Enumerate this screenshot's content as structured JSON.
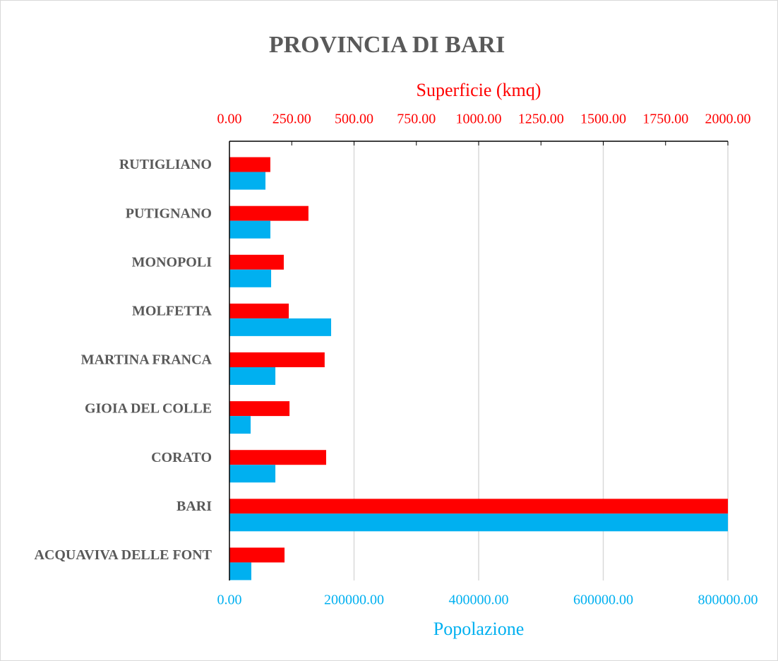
{
  "chart_data": {
    "type": "bar",
    "orientation": "horizontal",
    "title": "PROVINCIA DI  BARI",
    "x2_label": "Superficie (kmq)",
    "x_label": "Popolazione",
    "categories": [
      "RUTIGLIANO",
      "PUTIGNANO",
      "MONOPOLI",
      "MOLFETTA",
      "MARTINA FRANCA",
      "GIOIA DEL COLLE",
      "CORATO",
      "BARI",
      "ACQUAVIVA DELLE FONT"
    ],
    "series": [
      {
        "color": "#ff0000",
        "axis": "x2",
        "values": [
          164,
          317,
          218,
          238,
          382,
          241,
          388,
          2000,
          221
        ]
      },
      {
        "color": "#00b0f0",
        "axis": "x",
        "values": [
          57800,
          65700,
          66900,
          163200,
          73700,
          34000,
          73700,
          800000,
          35100
        ]
      }
    ],
    "x2lim": [
      0,
      2000
    ],
    "x2ticks": [
      {
        "value": 0,
        "label": "0.00"
      },
      {
        "value": 250,
        "label": "250.00"
      },
      {
        "value": 500,
        "label": "500.00"
      },
      {
        "value": 750,
        "label": "750.00"
      },
      {
        "value": 1000,
        "label": "1000.00"
      },
      {
        "value": 1250,
        "label": "1250.00"
      },
      {
        "value": 1500,
        "label": "1500.00"
      },
      {
        "value": 1750,
        "label": "1750.00"
      },
      {
        "value": 2000,
        "label": "2000.00"
      }
    ],
    "xlim": [
      0,
      800000
    ],
    "xticks": [
      {
        "value": 0,
        "label": "0.00"
      },
      {
        "value": 200000,
        "label": "200000.00"
      },
      {
        "value": 400000,
        "label": "400000.00"
      },
      {
        "value": 600000,
        "label": "600000.00"
      },
      {
        "value": 800000,
        "label": "800000.00"
      }
    ],
    "grid": true
  }
}
